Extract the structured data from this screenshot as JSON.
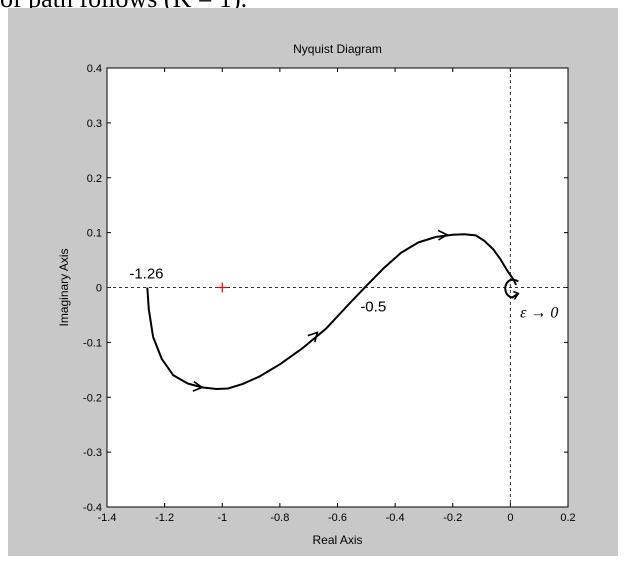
{
  "caption": "of path follows (K = 1).",
  "chart_data": {
    "type": "line",
    "title": "Nyquist Diagram",
    "xlabel": "Real Axis",
    "ylabel": "Imaginary Axis",
    "xlim": [
      -1.4,
      0.2
    ],
    "ylim": [
      -0.4,
      0.4
    ],
    "xticks": [
      -1.4,
      -1.2,
      -1,
      -0.8,
      -0.6,
      -0.4,
      -0.2,
      0,
      0.2
    ],
    "yticks": [
      -0.4,
      -0.3,
      -0.2,
      -0.1,
      0,
      0.1,
      0.2,
      0.3,
      0.4
    ],
    "xtick_labels": [
      "-1.4",
      "-1.2",
      "-1",
      "-0.8",
      "-0.6",
      "-0.4",
      "-0.2",
      "0",
      "0.2"
    ],
    "ytick_labels": [
      "-0.4",
      "-0.3",
      "-0.2",
      "-0.1",
      "0",
      "0.1",
      "0.2",
      "0.3",
      "0.4"
    ],
    "grid": false,
    "series": [
      {
        "x": [
          -1.26,
          -1.255,
          -1.24,
          -1.21,
          -1.17,
          -1.12,
          -1.07,
          -1.02,
          -0.98,
          -0.93,
          -0.87,
          -0.8,
          -0.72,
          -0.64,
          -0.56,
          -0.5,
          -0.44,
          -0.38,
          -0.32,
          -0.26,
          -0.2,
          -0.16,
          -0.12,
          -0.09,
          -0.06,
          -0.035,
          -0.01,
          0.01,
          0.02
        ],
        "y": [
          0,
          -0.04,
          -0.09,
          -0.13,
          -0.16,
          -0.175,
          -0.182,
          -0.185,
          -0.184,
          -0.176,
          -0.162,
          -0.14,
          -0.11,
          -0.075,
          -0.03,
          0.003,
          0.035,
          0.063,
          0.082,
          0.092,
          0.096,
          0.097,
          0.095,
          0.085,
          0.07,
          0.052,
          0.03,
          0.015,
          0.005
        ],
        "color": "#000000"
      }
    ],
    "direction_arrows_at": [
      [
        -1.07,
        -0.182
      ],
      [
        -0.67,
        -0.082
      ],
      [
        -0.22,
        0.096
      ]
    ],
    "reference_lines": {
      "x": 0,
      "y": 0,
      "style": "dashed"
    },
    "critical_point": {
      "x": -1,
      "y": 0,
      "marker": "+",
      "color": "#ff0000"
    },
    "annotations": [
      {
        "text": "-1.26",
        "x": -1.26,
        "y": 0
      },
      {
        "text": "-0.5",
        "x": -0.5,
        "y": 0
      },
      {
        "text": "ε → 0",
        "x": 0.02,
        "y": 0
      }
    ]
  }
}
